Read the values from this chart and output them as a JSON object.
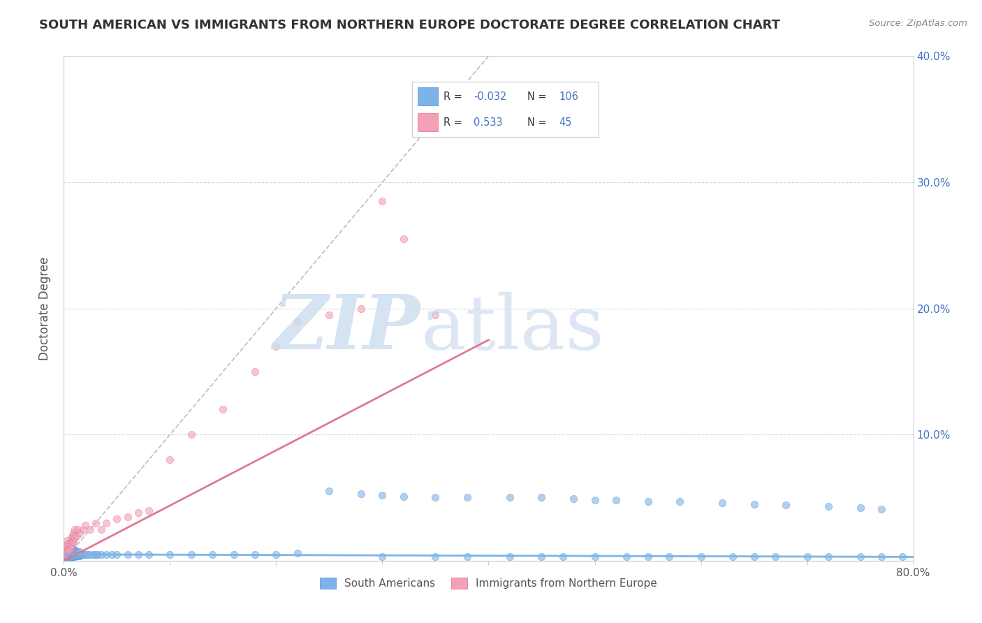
{
  "title": "SOUTH AMERICAN VS IMMIGRANTS FROM NORTHERN EUROPE DOCTORATE DEGREE CORRELATION CHART",
  "source": "Source: ZipAtlas.com",
  "ylabel": "Doctorate Degree",
  "xlabel": "",
  "xlim": [
    0.0,
    0.8
  ],
  "ylim": [
    0.0,
    0.4
  ],
  "xticks": [
    0.0,
    0.1,
    0.2,
    0.3,
    0.4,
    0.5,
    0.6,
    0.7,
    0.8
  ],
  "yticks": [
    0.0,
    0.1,
    0.2,
    0.3,
    0.4
  ],
  "ytick_labels_right": [
    "",
    "10.0%",
    "20.0%",
    "30.0%",
    "40.0%"
  ],
  "xtick_labels": [
    "0.0%",
    "",
    "",
    "",
    "",
    "",
    "",
    "",
    "80.0%"
  ],
  "series1_color": "#7eb3e8",
  "series2_color": "#f4a0b5",
  "series1_edge_color": "#5090d0",
  "series2_edge_color": "#e07090",
  "series1_label": "South Americans",
  "series2_label": "Immigrants from Northern Europe",
  "series1_R": "-0.032",
  "series1_N": "106",
  "series2_R": "0.533",
  "series2_N": "45",
  "legend_text_color": "#4472c4",
  "background_color": "#ffffff",
  "grid_color": "#cccccc",
  "title_color": "#333333",
  "source_color": "#888888",
  "ylabel_color": "#555555",
  "diag_color": "#bbbbbb",
  "trend1_color": "#7eb3e8",
  "trend2_color": "#e07890",
  "s1_x": [
    0.001,
    0.001,
    0.001,
    0.002,
    0.002,
    0.002,
    0.002,
    0.003,
    0.003,
    0.003,
    0.003,
    0.004,
    0.004,
    0.004,
    0.004,
    0.005,
    0.005,
    0.005,
    0.005,
    0.005,
    0.006,
    0.006,
    0.006,
    0.007,
    0.007,
    0.007,
    0.007,
    0.008,
    0.008,
    0.008,
    0.009,
    0.009,
    0.009,
    0.01,
    0.01,
    0.01,
    0.011,
    0.011,
    0.012,
    0.012,
    0.013,
    0.013,
    0.014,
    0.015,
    0.015,
    0.016,
    0.017,
    0.018,
    0.02,
    0.022,
    0.025,
    0.028,
    0.03,
    0.032,
    0.035,
    0.04,
    0.045,
    0.05,
    0.06,
    0.07,
    0.08,
    0.1,
    0.12,
    0.14,
    0.16,
    0.18,
    0.2,
    0.22,
    0.25,
    0.28,
    0.3,
    0.32,
    0.35,
    0.38,
    0.42,
    0.45,
    0.48,
    0.5,
    0.52,
    0.55,
    0.58,
    0.62,
    0.65,
    0.68,
    0.72,
    0.75,
    0.77,
    0.79,
    0.3,
    0.35,
    0.38,
    0.42,
    0.45,
    0.47,
    0.5,
    0.53,
    0.55,
    0.57,
    0.6,
    0.63,
    0.65,
    0.67,
    0.7,
    0.72,
    0.75,
    0.77
  ],
  "s1_y": [
    0.003,
    0.005,
    0.007,
    0.002,
    0.004,
    0.006,
    0.008,
    0.003,
    0.005,
    0.007,
    0.009,
    0.003,
    0.005,
    0.007,
    0.009,
    0.002,
    0.004,
    0.006,
    0.008,
    0.01,
    0.003,
    0.005,
    0.008,
    0.003,
    0.005,
    0.007,
    0.009,
    0.003,
    0.006,
    0.009,
    0.003,
    0.006,
    0.009,
    0.003,
    0.006,
    0.009,
    0.004,
    0.007,
    0.004,
    0.007,
    0.004,
    0.007,
    0.004,
    0.004,
    0.007,
    0.005,
    0.005,
    0.005,
    0.005,
    0.005,
    0.005,
    0.005,
    0.005,
    0.005,
    0.005,
    0.005,
    0.005,
    0.005,
    0.005,
    0.005,
    0.005,
    0.005,
    0.005,
    0.005,
    0.005,
    0.005,
    0.005,
    0.006,
    0.055,
    0.053,
    0.052,
    0.051,
    0.05,
    0.05,
    0.05,
    0.05,
    0.049,
    0.048,
    0.048,
    0.047,
    0.047,
    0.046,
    0.045,
    0.044,
    0.043,
    0.042,
    0.041,
    0.003,
    0.003,
    0.003,
    0.003,
    0.003,
    0.003,
    0.003,
    0.003,
    0.003,
    0.003,
    0.003,
    0.003,
    0.003,
    0.003,
    0.003,
    0.003,
    0.003,
    0.003,
    0.003
  ],
  "s2_x": [
    0.001,
    0.001,
    0.002,
    0.002,
    0.003,
    0.003,
    0.003,
    0.004,
    0.004,
    0.005,
    0.005,
    0.006,
    0.006,
    0.007,
    0.007,
    0.008,
    0.008,
    0.009,
    0.009,
    0.01,
    0.01,
    0.012,
    0.013,
    0.015,
    0.018,
    0.02,
    0.025,
    0.03,
    0.035,
    0.04,
    0.05,
    0.06,
    0.07,
    0.08,
    0.1,
    0.12,
    0.15,
    0.18,
    0.2,
    0.22,
    0.25,
    0.28,
    0.3,
    0.32,
    0.35
  ],
  "s2_y": [
    0.005,
    0.008,
    0.006,
    0.01,
    0.007,
    0.012,
    0.016,
    0.009,
    0.014,
    0.008,
    0.013,
    0.01,
    0.015,
    0.012,
    0.018,
    0.015,
    0.02,
    0.015,
    0.022,
    0.018,
    0.025,
    0.02,
    0.025,
    0.022,
    0.025,
    0.028,
    0.025,
    0.03,
    0.025,
    0.03,
    0.033,
    0.035,
    0.038,
    0.04,
    0.08,
    0.1,
    0.12,
    0.15,
    0.17,
    0.19,
    0.195,
    0.2,
    0.285,
    0.255,
    0.195
  ]
}
